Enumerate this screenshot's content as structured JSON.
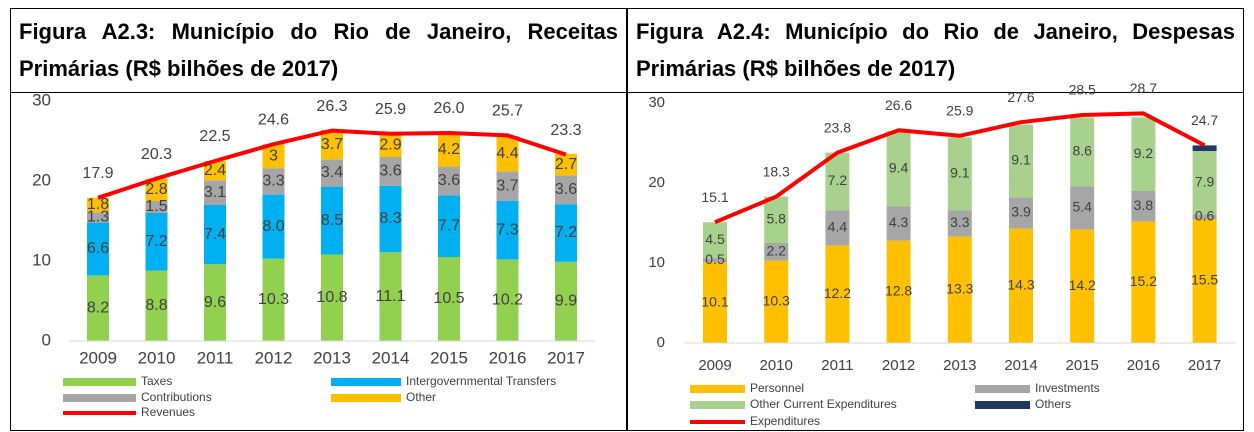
{
  "chart_data": [
    {
      "type": "bar",
      "stacked": true,
      "title": "Figura A2.3: Município do Rio de Janeiro, Receitas Primárias (R$ bilhões de 2017)",
      "categories": [
        "2009",
        "2010",
        "2011",
        "2012",
        "2013",
        "2014",
        "2015",
        "2016",
        "2017"
      ],
      "series": [
        {
          "name": "Taxes",
          "type": "bar",
          "color": "#92d050",
          "values": [
            8.2,
            8.8,
            9.6,
            10.3,
            10.8,
            11.1,
            10.5,
            10.2,
            9.9
          ]
        },
        {
          "name": "Intergovernmental Transfers",
          "type": "bar",
          "color": "#00b0f0",
          "values": [
            6.6,
            7.2,
            7.4,
            8.0,
            8.5,
            8.3,
            7.7,
            7.3,
            7.2
          ],
          "value_labels": [
            "6.6",
            "7.2",
            "7.4",
            "8.0",
            "8.5",
            "8.3",
            "7.7",
            "7.3",
            "7.2"
          ]
        },
        {
          "name": "Contributions",
          "type": "bar",
          "color": "#a6a6a6",
          "values": [
            1.3,
            1.5,
            3.1,
            3.3,
            3.4,
            3.6,
            3.6,
            3.7,
            3.6
          ]
        },
        {
          "name": "Other",
          "type": "bar",
          "color": "#ffc000",
          "values": [
            1.8,
            2.8,
            2.4,
            3.0,
            3.7,
            2.9,
            4.2,
            4.4,
            2.7
          ]
        },
        {
          "name": "Revenues",
          "type": "line",
          "color": "#ff0000",
          "values": [
            17.9,
            20.3,
            22.5,
            24.6,
            26.3,
            25.9,
            26.0,
            25.7,
            23.3
          ],
          "value_labels": [
            "17.9",
            "20.3",
            "22.5",
            "24.6",
            "26.3",
            "25.9",
            "26.0",
            "25.7",
            "23.3"
          ]
        }
      ],
      "ylim": [
        0,
        30
      ],
      "yticks": [
        0,
        10,
        20,
        30
      ],
      "grid": false,
      "legend": "bottom"
    },
    {
      "type": "bar",
      "stacked": true,
      "title": "Figura A2.4: Município do Rio de Janeiro, Despesas Primárias (R$ bilhões de 2017)",
      "categories": [
        "2009",
        "2010",
        "2011",
        "2012",
        "2013",
        "2014",
        "2015",
        "2016",
        "2017"
      ],
      "series": [
        {
          "name": "Personnel",
          "type": "bar",
          "color": "#ffc000",
          "values": [
            10.1,
            10.3,
            12.2,
            12.8,
            13.3,
            14.3,
            14.2,
            15.2,
            15.5
          ]
        },
        {
          "name": "Investments",
          "type": "bar",
          "color": "#a6a6a6",
          "values": [
            0.5,
            2.2,
            4.4,
            4.3,
            3.3,
            3.9,
            5.4,
            3.8,
            0.6
          ]
        },
        {
          "name": "Other Current Expenditures",
          "type": "bar",
          "color": "#a9d18e",
          "values": [
            4.5,
            5.8,
            7.2,
            9.4,
            9.1,
            9.1,
            8.6,
            9.2,
            7.9
          ]
        },
        {
          "name": "Others",
          "type": "bar",
          "color": "#1f3864",
          "show_labels": false,
          "values": [
            null,
            null,
            null,
            null,
            null,
            null,
            null,
            null,
            0.7
          ]
        },
        {
          "name": "Expenditures",
          "type": "line",
          "color": "#ff0000",
          "values": [
            15.1,
            18.3,
            23.8,
            26.6,
            25.9,
            27.6,
            28.5,
            28.7,
            24.7
          ]
        }
      ],
      "ylim": [
        0,
        30
      ],
      "yticks": [
        0,
        10,
        20,
        30
      ],
      "grid": false,
      "legend": "bottom"
    }
  ]
}
